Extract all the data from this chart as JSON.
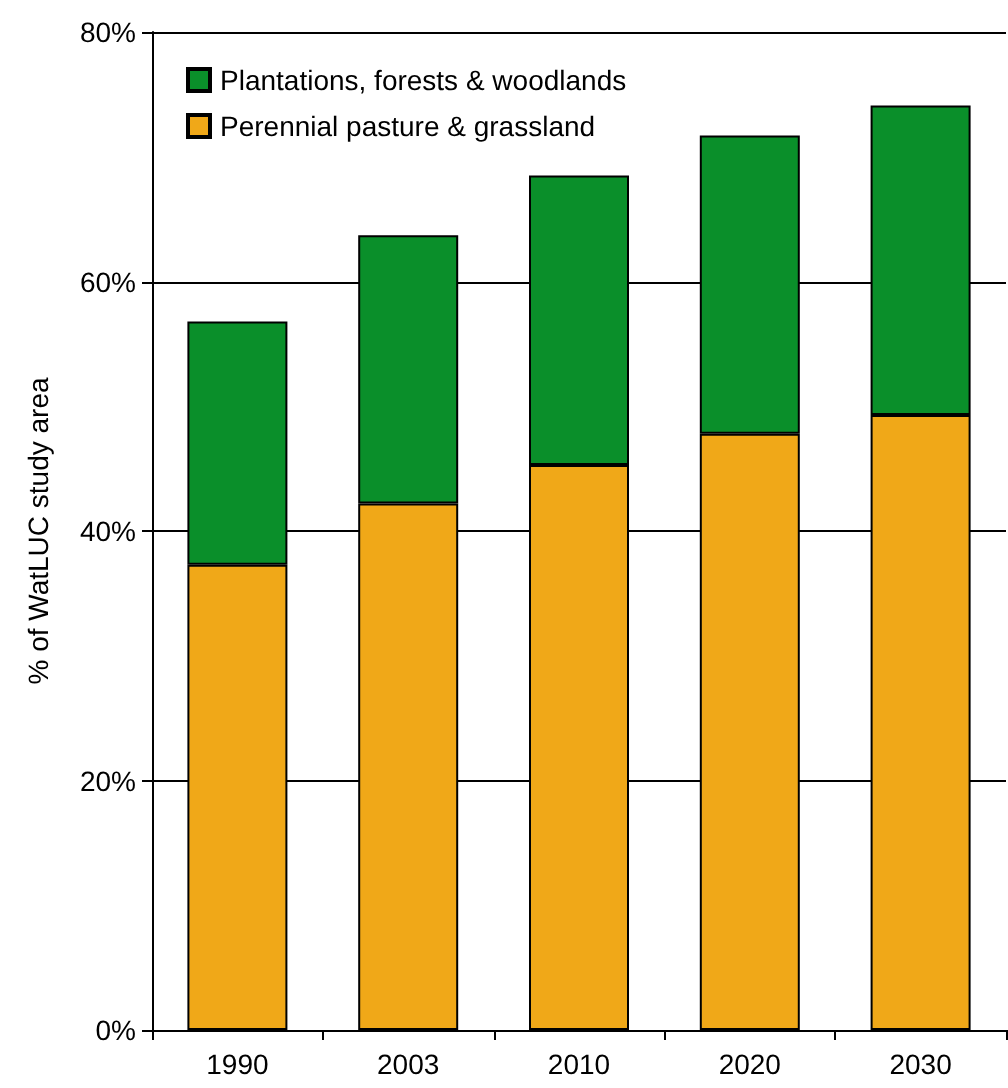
{
  "chart_data": {
    "type": "bar",
    "ylabel": "% of WatLUC study area",
    "categories": [
      "1990",
      "2003",
      "2010",
      "2020",
      "2030"
    ],
    "stacked": true,
    "series": [
      {
        "name": "Perennial pasture & grassland",
        "color": "#f0a818",
        "values": [
          37.3,
          42.2,
          45.3,
          47.8,
          49.3
        ]
      },
      {
        "name": "Plantations, forests & woodlands",
        "color": "#0a8f2a",
        "values": [
          19.5,
          21.5,
          23.2,
          23.9,
          24.8
        ]
      }
    ],
    "ylim": [
      0,
      80
    ],
    "yticks": [
      {
        "value": 0,
        "label": "0%"
      },
      {
        "value": 20,
        "label": "20%"
      },
      {
        "value": 40,
        "label": "40%"
      },
      {
        "value": 60,
        "label": "60%"
      },
      {
        "value": 80,
        "label": "80%"
      }
    ],
    "grid": "y",
    "legend": "top left"
  }
}
